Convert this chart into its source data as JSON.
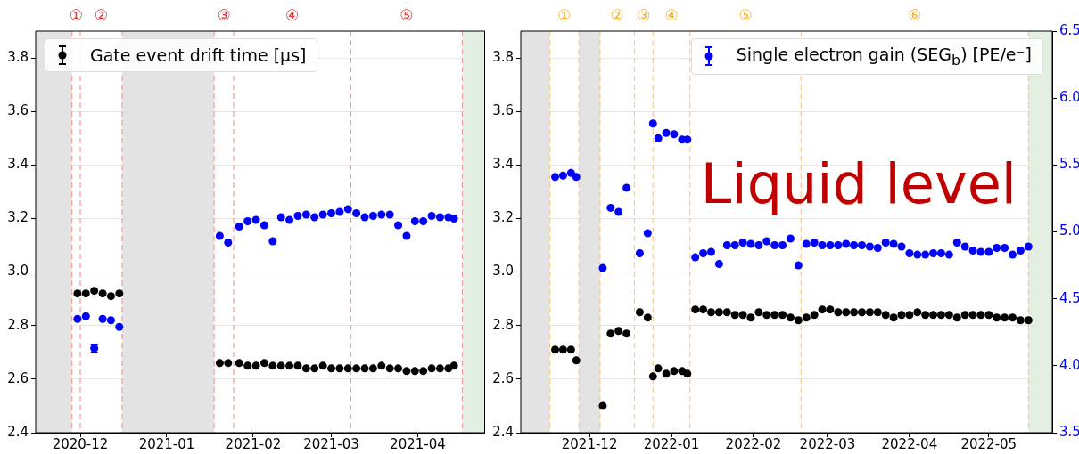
{
  "chart_data": [
    {
      "type": "scatter",
      "marker": "circle",
      "grid": "y",
      "legend": "top left",
      "xlim": [
        "2020-11-15",
        "2021-04-25"
      ],
      "xticks": [
        "2020-12",
        "2021-01",
        "2021-02",
        "2021-03",
        "2021-04"
      ],
      "ylim": [
        2.4,
        3.9
      ],
      "yticks": [
        2.4,
        2.6,
        2.8,
        {
          "value": 3,
          "label": "3.0"
        },
        3.2,
        3.4,
        3.6,
        3.8
      ],
      "y2lim": [
        3.5,
        6.5
      ],
      "x": [
        "2020-11-30",
        "2020-12-03",
        "2020-12-06",
        "2020-12-09",
        "2020-12-12",
        "2020-12-15",
        "2021-01-20",
        "2021-01-23",
        "2021-01-27",
        "2021-01-30",
        "2021-02-02",
        "2021-02-05",
        "2021-02-08",
        "2021-02-11",
        "2021-02-14",
        "2021-02-17",
        "2021-02-20",
        "2021-02-23",
        "2021-02-26",
        "2021-03-01",
        "2021-03-04",
        "2021-03-07",
        "2021-03-10",
        "2021-03-13",
        "2021-03-16",
        "2021-03-19",
        "2021-03-22",
        "2021-03-25",
        "2021-03-28",
        "2021-03-31",
        "2021-04-03",
        "2021-04-06",
        "2021-04-09",
        "2021-04-12",
        "2021-04-14"
      ],
      "series": [
        {
          "name": "Gate event drift time [μs]",
          "color": "#000000",
          "values": [
            2.92,
            2.92,
            2.93,
            2.92,
            2.91,
            2.92,
            2.66,
            2.66,
            2.66,
            2.65,
            2.65,
            2.66,
            2.65,
            2.65,
            2.65,
            2.65,
            2.64,
            2.64,
            2.65,
            2.64,
            2.64,
            2.64,
            2.64,
            2.64,
            2.64,
            2.65,
            2.64,
            2.64,
            2.63,
            2.63,
            2.63,
            2.64,
            2.64,
            2.64,
            2.65
          ]
        },
        {
          "color": "#0000ff",
          "axis": "y2",
          "values": [
            4.35,
            4.37,
            4.13,
            4.35,
            4.34,
            4.29,
            4.97,
            4.92,
            5.04,
            5.08,
            5.09,
            5.05,
            4.93,
            5.11,
            5.09,
            5.12,
            5.13,
            5.11,
            5.13,
            5.14,
            5.15,
            5.17,
            5.14,
            5.11,
            5.12,
            5.13,
            5.13,
            5.05,
            4.97,
            5.08,
            5.08,
            5.12,
            5.11,
            5.11,
            5.1
          ],
          "errors": [
            null,
            null,
            0.03,
            null,
            null,
            null,
            null,
            null,
            null,
            null,
            null,
            null,
            null,
            null,
            null,
            null,
            null,
            null,
            null,
            null,
            null,
            null,
            null,
            null,
            null,
            null,
            null,
            null,
            null,
            null,
            null,
            null,
            null,
            null,
            null
          ]
        }
      ],
      "bands": [
        {
          "axis": "x",
          "from": "2020-11-15",
          "to": "2020-11-28",
          "color": "#e3e3e3"
        },
        {
          "axis": "x",
          "from": "2020-12-16",
          "to": "2021-01-18",
          "color": "#e3e3e3"
        },
        {
          "axis": "x",
          "from": "2021-04-17",
          "to": "2021-04-25",
          "color": "#e3efe3"
        }
      ],
      "ref_lines": [
        {
          "axis": "x",
          "value": "2020-11-28",
          "color": "#f0a0a0",
          "line_style": "dashed"
        },
        {
          "axis": "x",
          "value": "2020-12-01",
          "color": "#f0a0a0",
          "line_style": "dashed"
        },
        {
          "axis": "x",
          "value": "2020-12-16",
          "color": "#f0a0a0",
          "line_style": "dashed"
        },
        {
          "axis": "x",
          "value": "2021-01-18",
          "color": "#f0a0a0",
          "line_style": "dashed"
        },
        {
          "axis": "x",
          "value": "2021-01-25",
          "color": "#f0a0a0",
          "line_style": "dashed"
        },
        {
          "axis": "x",
          "value": "2021-03-08",
          "color": "#f0a0a0",
          "line_style": "dashed"
        },
        {
          "axis": "x",
          "value": "2021-04-17",
          "color": "#f0a0a0",
          "line_style": "dashed"
        }
      ],
      "annotations": [
        "①",
        "②",
        "③",
        "④",
        "⑤"
      ]
    },
    {
      "type": "scatter",
      "marker": "circle",
      "grid": "y",
      "legend": "top right",
      "xlim": [
        "2021-11-05",
        "2022-05-25"
      ],
      "xticks": [
        "2021-12",
        "2022-01",
        "2022-02",
        "2022-03",
        "2022-04",
        "2022-05"
      ],
      "ylim": [
        2.4,
        3.9
      ],
      "yticks": [
        2.4,
        2.6,
        2.8,
        {
          "value": 3,
          "label": "3.0"
        },
        3.2,
        3.4,
        3.6,
        3.8
      ],
      "y2lim": [
        3.5,
        6.5
      ],
      "y2ticks": [
        3.5,
        {
          "value": 4,
          "label": "4.0"
        },
        4.5,
        {
          "value": 5,
          "label": "5.0"
        },
        5.5,
        {
          "value": 6,
          "label": "6.0"
        },
        6.5
      ],
      "x": [
        "2021-11-18",
        "2021-11-21",
        "2021-11-24",
        "2021-11-26",
        "2021-12-06",
        "2021-12-09",
        "2021-12-12",
        "2021-12-15",
        "2021-12-20",
        "2021-12-23",
        "2021-12-25",
        "2021-12-27",
        "2021-12-30",
        "2022-01-02",
        "2022-01-05",
        "2022-01-07",
        "2022-01-10",
        "2022-01-13",
        "2022-01-16",
        "2022-01-19",
        "2022-01-22",
        "2022-01-25",
        "2022-01-28",
        "2022-01-31",
        "2022-02-03",
        "2022-02-06",
        "2022-02-09",
        "2022-02-12",
        "2022-02-15",
        "2022-02-18",
        "2022-02-21",
        "2022-02-24",
        "2022-02-27",
        "2022-03-02",
        "2022-03-05",
        "2022-03-08",
        "2022-03-11",
        "2022-03-14",
        "2022-03-17",
        "2022-03-20",
        "2022-03-23",
        "2022-03-26",
        "2022-03-29",
        "2022-04-01",
        "2022-04-04",
        "2022-04-07",
        "2022-04-10",
        "2022-04-13",
        "2022-04-16",
        "2022-04-19",
        "2022-04-22",
        "2022-04-25",
        "2022-04-28",
        "2022-05-01",
        "2022-05-04",
        "2022-05-07",
        "2022-05-10",
        "2022-05-13",
        "2022-05-16"
      ],
      "series": [
        {
          "color": "#000000",
          "values": [
            2.71,
            2.71,
            2.71,
            2.67,
            2.5,
            2.77,
            2.78,
            2.77,
            2.85,
            2.83,
            2.61,
            2.64,
            2.62,
            2.63,
            2.63,
            2.62,
            2.86,
            2.86,
            2.85,
            2.85,
            2.85,
            2.84,
            2.84,
            2.83,
            2.85,
            2.84,
            2.84,
            2.84,
            2.83,
            2.82,
            2.83,
            2.84,
            2.86,
            2.86,
            2.85,
            2.85,
            2.85,
            2.85,
            2.85,
            2.85,
            2.84,
            2.83,
            2.84,
            2.84,
            2.85,
            2.84,
            2.84,
            2.84,
            2.84,
            2.83,
            2.84,
            2.84,
            2.84,
            2.84,
            2.83,
            2.83,
            2.83,
            2.82,
            2.82
          ]
        },
        {
          "name": "Single electron gain (SEG$_{b}$) [PE/e⁻]",
          "color": "#0000ff",
          "axis": "y2",
          "values": [
            5.41,
            5.42,
            5.44,
            5.41,
            4.73,
            5.18,
            5.15,
            5.33,
            4.84,
            4.99,
            5.81,
            5.7,
            5.74,
            5.73,
            5.69,
            5.69,
            4.81,
            4.84,
            4.85,
            4.76,
            4.9,
            4.9,
            4.92,
            4.91,
            4.9,
            4.93,
            4.9,
            4.9,
            4.95,
            4.75,
            4.91,
            4.92,
            4.9,
            4.9,
            4.9,
            4.91,
            4.9,
            4.9,
            4.89,
            4.88,
            4.92,
            4.91,
            4.89,
            4.84,
            4.83,
            4.83,
            4.84,
            4.84,
            4.83,
            4.92,
            4.89,
            4.86,
            4.85,
            4.85,
            4.88,
            4.88,
            4.83,
            4.86,
            4.89
          ]
        }
      ],
      "bands": [
        {
          "axis": "x",
          "from": "2021-11-05",
          "to": "2021-11-16",
          "color": "#e3e3e3"
        },
        {
          "axis": "x",
          "from": "2021-11-27",
          "to": "2021-12-05",
          "color": "#e3e3e3"
        },
        {
          "axis": "x",
          "from": "2022-05-16",
          "to": "2022-05-25",
          "color": "#e3efe3"
        }
      ],
      "ref_lines": [
        {
          "axis": "x",
          "value": "2021-11-16",
          "color": "#f8c890",
          "line_style": "dashed"
        },
        {
          "axis": "x",
          "value": "2021-11-27",
          "color": "#f8c890",
          "line_style": "dashed"
        },
        {
          "axis": "x",
          "value": "2021-12-05",
          "color": "#f8c890",
          "line_style": "dashed"
        },
        {
          "axis": "x",
          "value": "2021-12-18",
          "color": "#f8c890",
          "line_style": "dashed"
        },
        {
          "axis": "x",
          "value": "2021-12-25",
          "color": "#f8c890",
          "line_style": "dashed"
        },
        {
          "axis": "x",
          "value": "2022-01-08",
          "color": "#f8c890",
          "line_style": "dashed"
        },
        {
          "axis": "x",
          "value": "2022-02-19",
          "color": "#f8c890",
          "line_style": "dashed"
        },
        {
          "axis": "x",
          "value": "2022-05-16",
          "color": "#f8c890",
          "line_style": "dashed"
        }
      ],
      "annotations": [
        "①",
        "②",
        "③",
        "④",
        "⑤",
        "⑥",
        "Liquid level"
      ]
    }
  ]
}
